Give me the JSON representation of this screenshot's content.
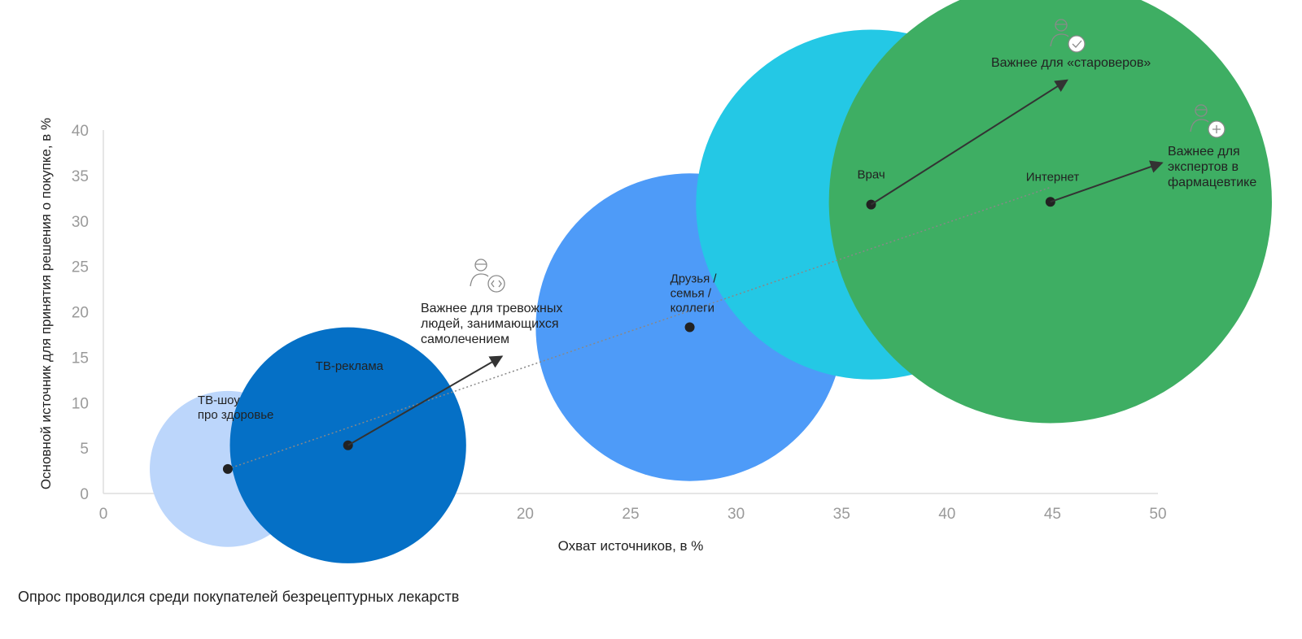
{
  "chart_data": {
    "type": "bubble",
    "xlabel": "Охват источников, в %",
    "ylabel": "Основной источник для принятия решения о покупке, в %",
    "xlim": [
      0,
      50
    ],
    "ylim": [
      0,
      40
    ],
    "xticks": [
      0,
      5,
      10,
      15,
      20,
      25,
      30,
      35,
      40,
      45,
      50
    ],
    "yticks": [
      0,
      5,
      10,
      15,
      20,
      25,
      30,
      35,
      40
    ],
    "points": [
      {
        "label": [
          "ТВ-шоу",
          "про здоровье"
        ],
        "x": 5.9,
        "y": 2.7,
        "size": 3.7,
        "color": "#bcd6fb"
      },
      {
        "label": [
          "ТВ-реклама"
        ],
        "x": 11.6,
        "y": 5.3,
        "size": 5.6,
        "color": "#0570c6"
      },
      {
        "label": [
          "Друзья /",
          "семья /",
          "коллеги"
        ],
        "x": 27.8,
        "y": 18.3,
        "size": 7.3,
        "color": "#4e9bf8"
      },
      {
        "label": [
          "Врач"
        ],
        "x": 36.4,
        "y": 31.8,
        "size": 8.3,
        "color": "#24c8e5"
      },
      {
        "label": [
          "Интернет"
        ],
        "x": 44.9,
        "y": 32.1,
        "size": 10.5,
        "color": "#3eae63"
      }
    ],
    "trend": {
      "from": [
        5.9,
        2.7
      ],
      "to": [
        44.9,
        33.7
      ],
      "style": "dotted",
      "color": "#888888"
    },
    "annotations": [
      {
        "text": [
          "Важнее для тревожных",
          "людей, занимающихся",
          "самолечением"
        ],
        "icon": "user-code-icon",
        "arrow_from": [
          11.6,
          5.3
        ],
        "arrow_to": [
          18.9,
          15.1
        ]
      },
      {
        "text": [
          "Важнее для «староверов»"
        ],
        "icon": "user-check-icon",
        "arrow_from": [
          36.4,
          31.8
        ],
        "arrow_to": [
          45.7,
          45.5
        ]
      },
      {
        "text": [
          "Важнее для",
          "экспертов в",
          "фармацевтике"
        ],
        "icon": "user-shield-icon",
        "arrow_from": [
          44.9,
          32.1
        ],
        "arrow_to": [
          50.2,
          36.4
        ]
      }
    ]
  },
  "footnote": "Опрос проводился среди покупателей безрецептурных лекарств"
}
